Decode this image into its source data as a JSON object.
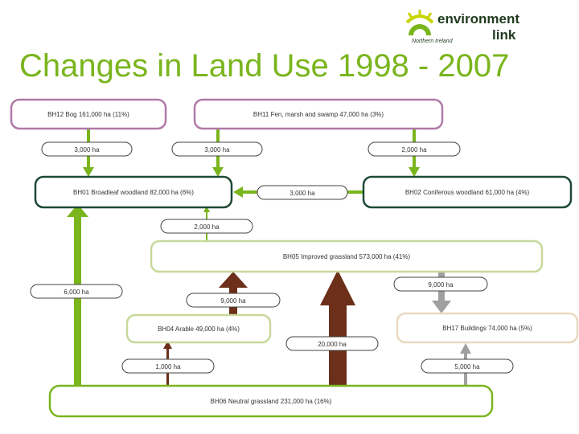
{
  "title": "Changes in Land Use 1998 - 2007",
  "logo": {
    "line1": "environment",
    "line2": "link",
    "region": "Northern Ireland"
  },
  "nodes": {
    "bh12": "BH12 Bog 161,000 ha (11%)",
    "bh11": "BH11 Fen, marsh and swamp 47,000 ha (3%)",
    "bh01": "BH01 Broadleaf woodland 82,000 ha (6%)",
    "bh02": "BH02 Coniferous woodland 61,000 ha (4%)",
    "bh05": "BH05 Improved grassland 573,000 ha (41%)",
    "bh04": "BH04 Arable 49,000 ha (4%)",
    "bh17": "BH17 Buildings 74,000 ha (5%)",
    "bh06": "BH06 Neutral grassland 231,000 ha (16%)"
  },
  "flows": {
    "bog_to_broadleaf": "3,000 ha",
    "fen_to_broadleaf": "3,000 ha",
    "fen_to_coniferous": "2,000 ha",
    "coniferous_to_broadleaf": "3,000 ha",
    "improved_to_broadleaf": "2,000 ha",
    "neutral_to_broadleaf": "6,000 ha",
    "arable_to_improved": "9,000 ha",
    "improved_to_buildings": "9,000 ha",
    "neutral_to_improved": "20,000 ha",
    "neutral_to_arable": "1,000 ha",
    "neutral_to_buildings": "5,000 ha"
  },
  "colors": {
    "title": "#7ab51d",
    "bog_border": "#b07aa8",
    "woodland_border": "#1e4a35",
    "grassland_border": "#c8d89a",
    "arable_border": "#c8d89a",
    "buildings_border": "#e8d9c0",
    "neutral_border": "#7ab51d",
    "green_arrow": "#7ab51d",
    "brown_arrow": "#6b2f1a",
    "grey_arrow": "#9e9e9e"
  }
}
